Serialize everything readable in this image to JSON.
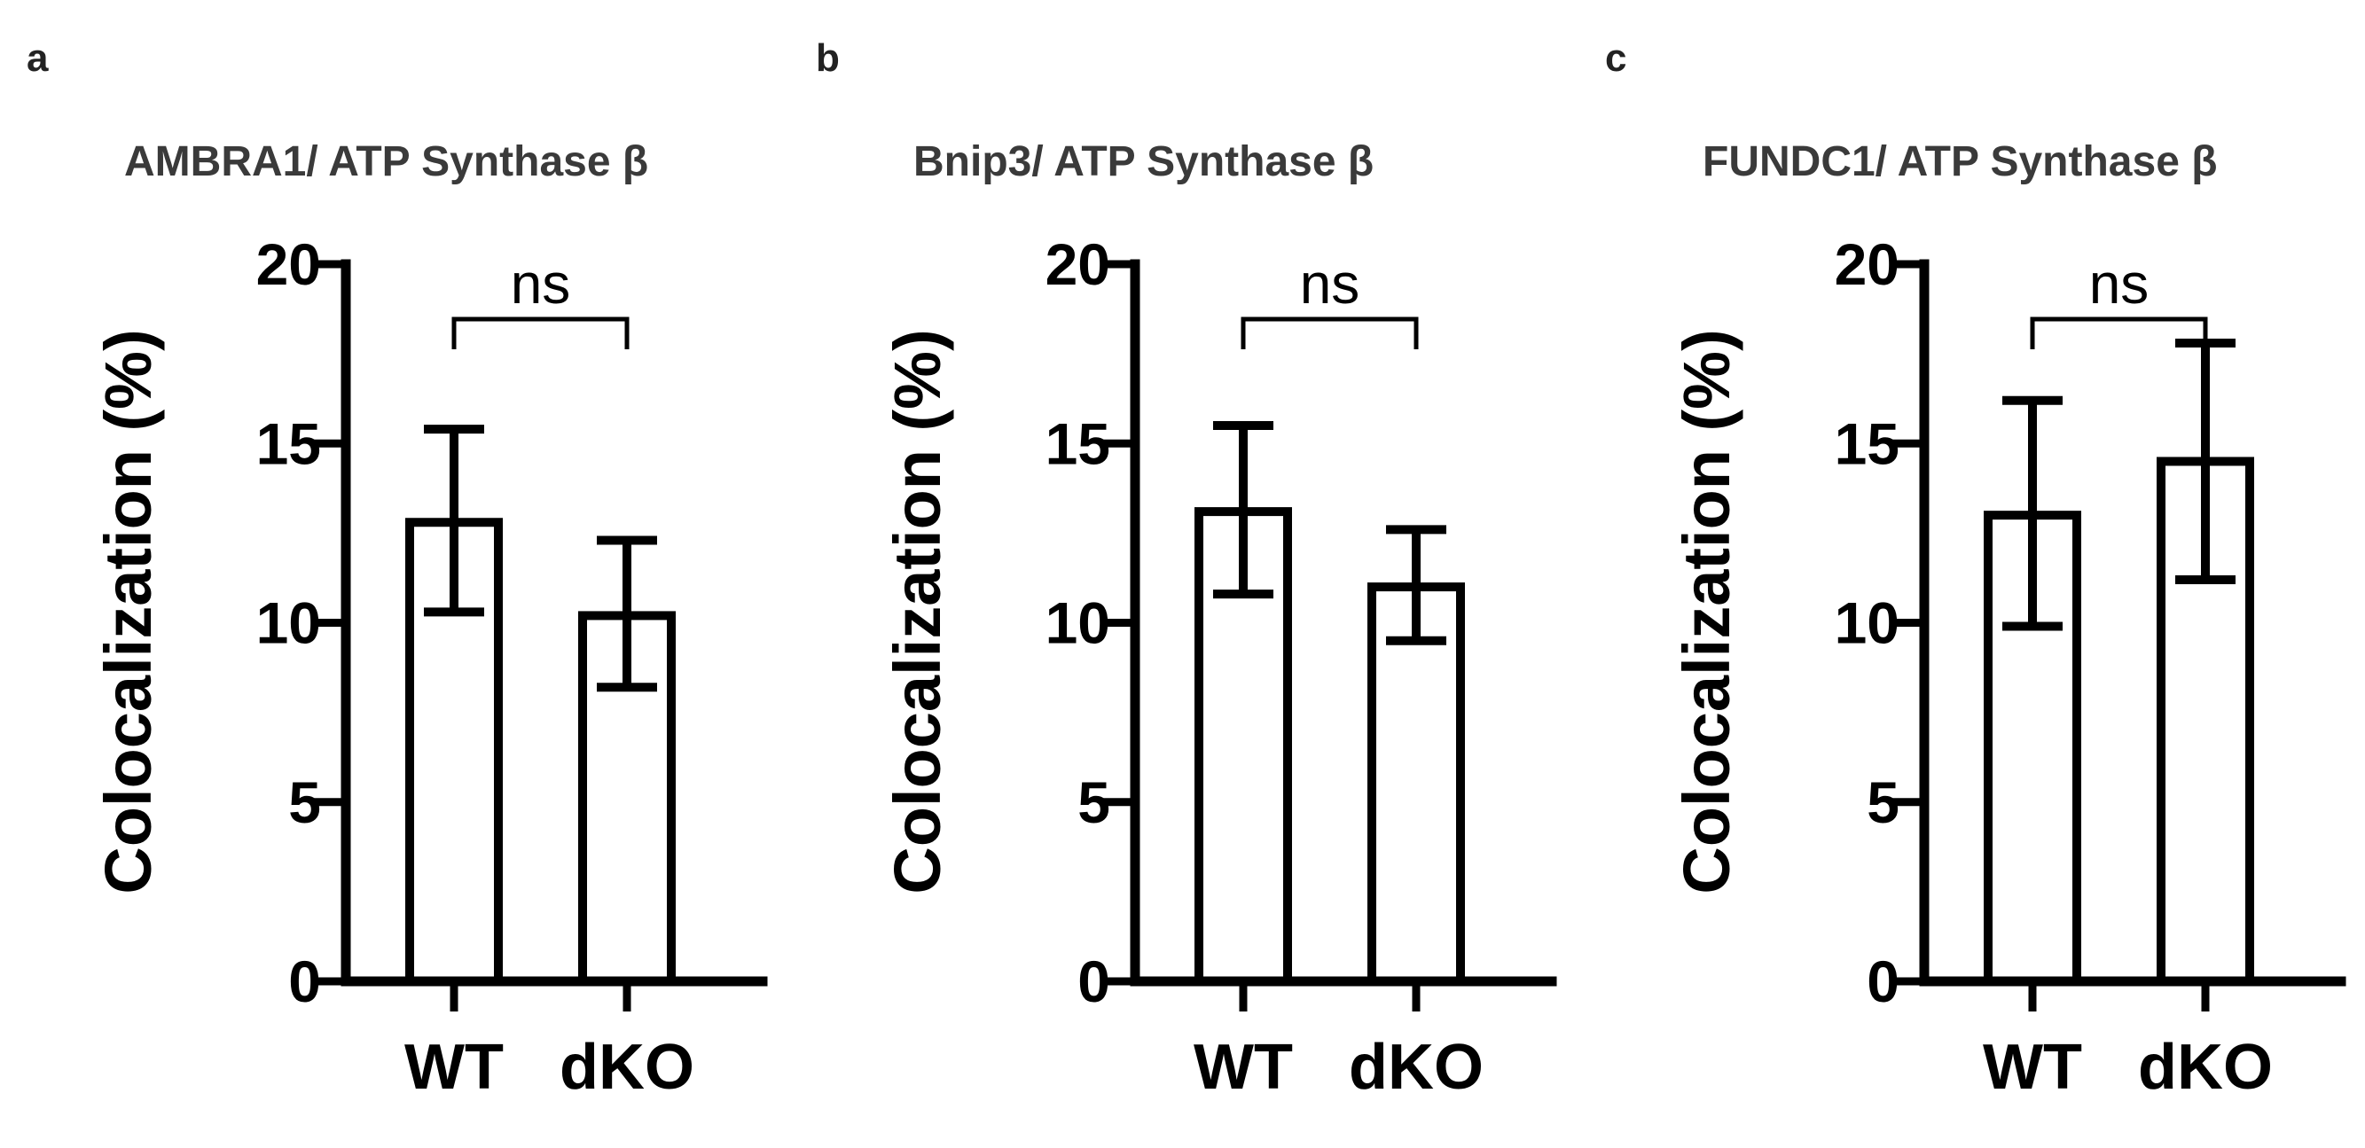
{
  "chart_data": [
    {
      "type": "bar",
      "panel": "a",
      "title": "AMBRA1/ ATP Synthase β",
      "ylabel": "Colocalization (%)",
      "xlabel": "",
      "categories": [
        "WT",
        "dKO"
      ],
      "values": [
        12.8,
        10.2
      ],
      "error_upper": [
        15.4,
        12.3
      ],
      "error_lower": [
        10.3,
        8.2
      ],
      "ylim": [
        0,
        20
      ],
      "yticks": [
        0,
        5,
        10,
        15,
        20
      ],
      "ytick_labels": [
        "0",
        "5",
        "10",
        "15",
        "20"
      ],
      "significance": "ns",
      "grid": false
    },
    {
      "type": "bar",
      "panel": "b",
      "title": "Bnip3/ ATP Synthase β",
      "ylabel": "Colocalization (%)",
      "xlabel": "",
      "categories": [
        "WT",
        "dKO"
      ],
      "values": [
        13.1,
        11.0
      ],
      "error_upper": [
        15.5,
        12.6
      ],
      "error_lower": [
        10.8,
        9.5
      ],
      "ylim": [
        0,
        20
      ],
      "yticks": [
        0,
        5,
        10,
        15,
        20
      ],
      "ytick_labels": [
        "0",
        "5",
        "10",
        "15",
        "20"
      ],
      "significance": "ns",
      "grid": false
    },
    {
      "type": "bar",
      "panel": "c",
      "title": "FUNDC1/ ATP Synthase β",
      "ylabel": "Colocalization (%)",
      "xlabel": "",
      "categories": [
        "WT",
        "dKO"
      ],
      "values": [
        13.0,
        14.5
      ],
      "error_upper": [
        16.2,
        17.8
      ],
      "error_lower": [
        9.9,
        11.2
      ],
      "ylim": [
        0,
        20
      ],
      "yticks": [
        0,
        5,
        10,
        15,
        20
      ],
      "ytick_labels": [
        "0",
        "5",
        "10",
        "15",
        "20"
      ],
      "significance": "ns",
      "grid": false
    }
  ]
}
